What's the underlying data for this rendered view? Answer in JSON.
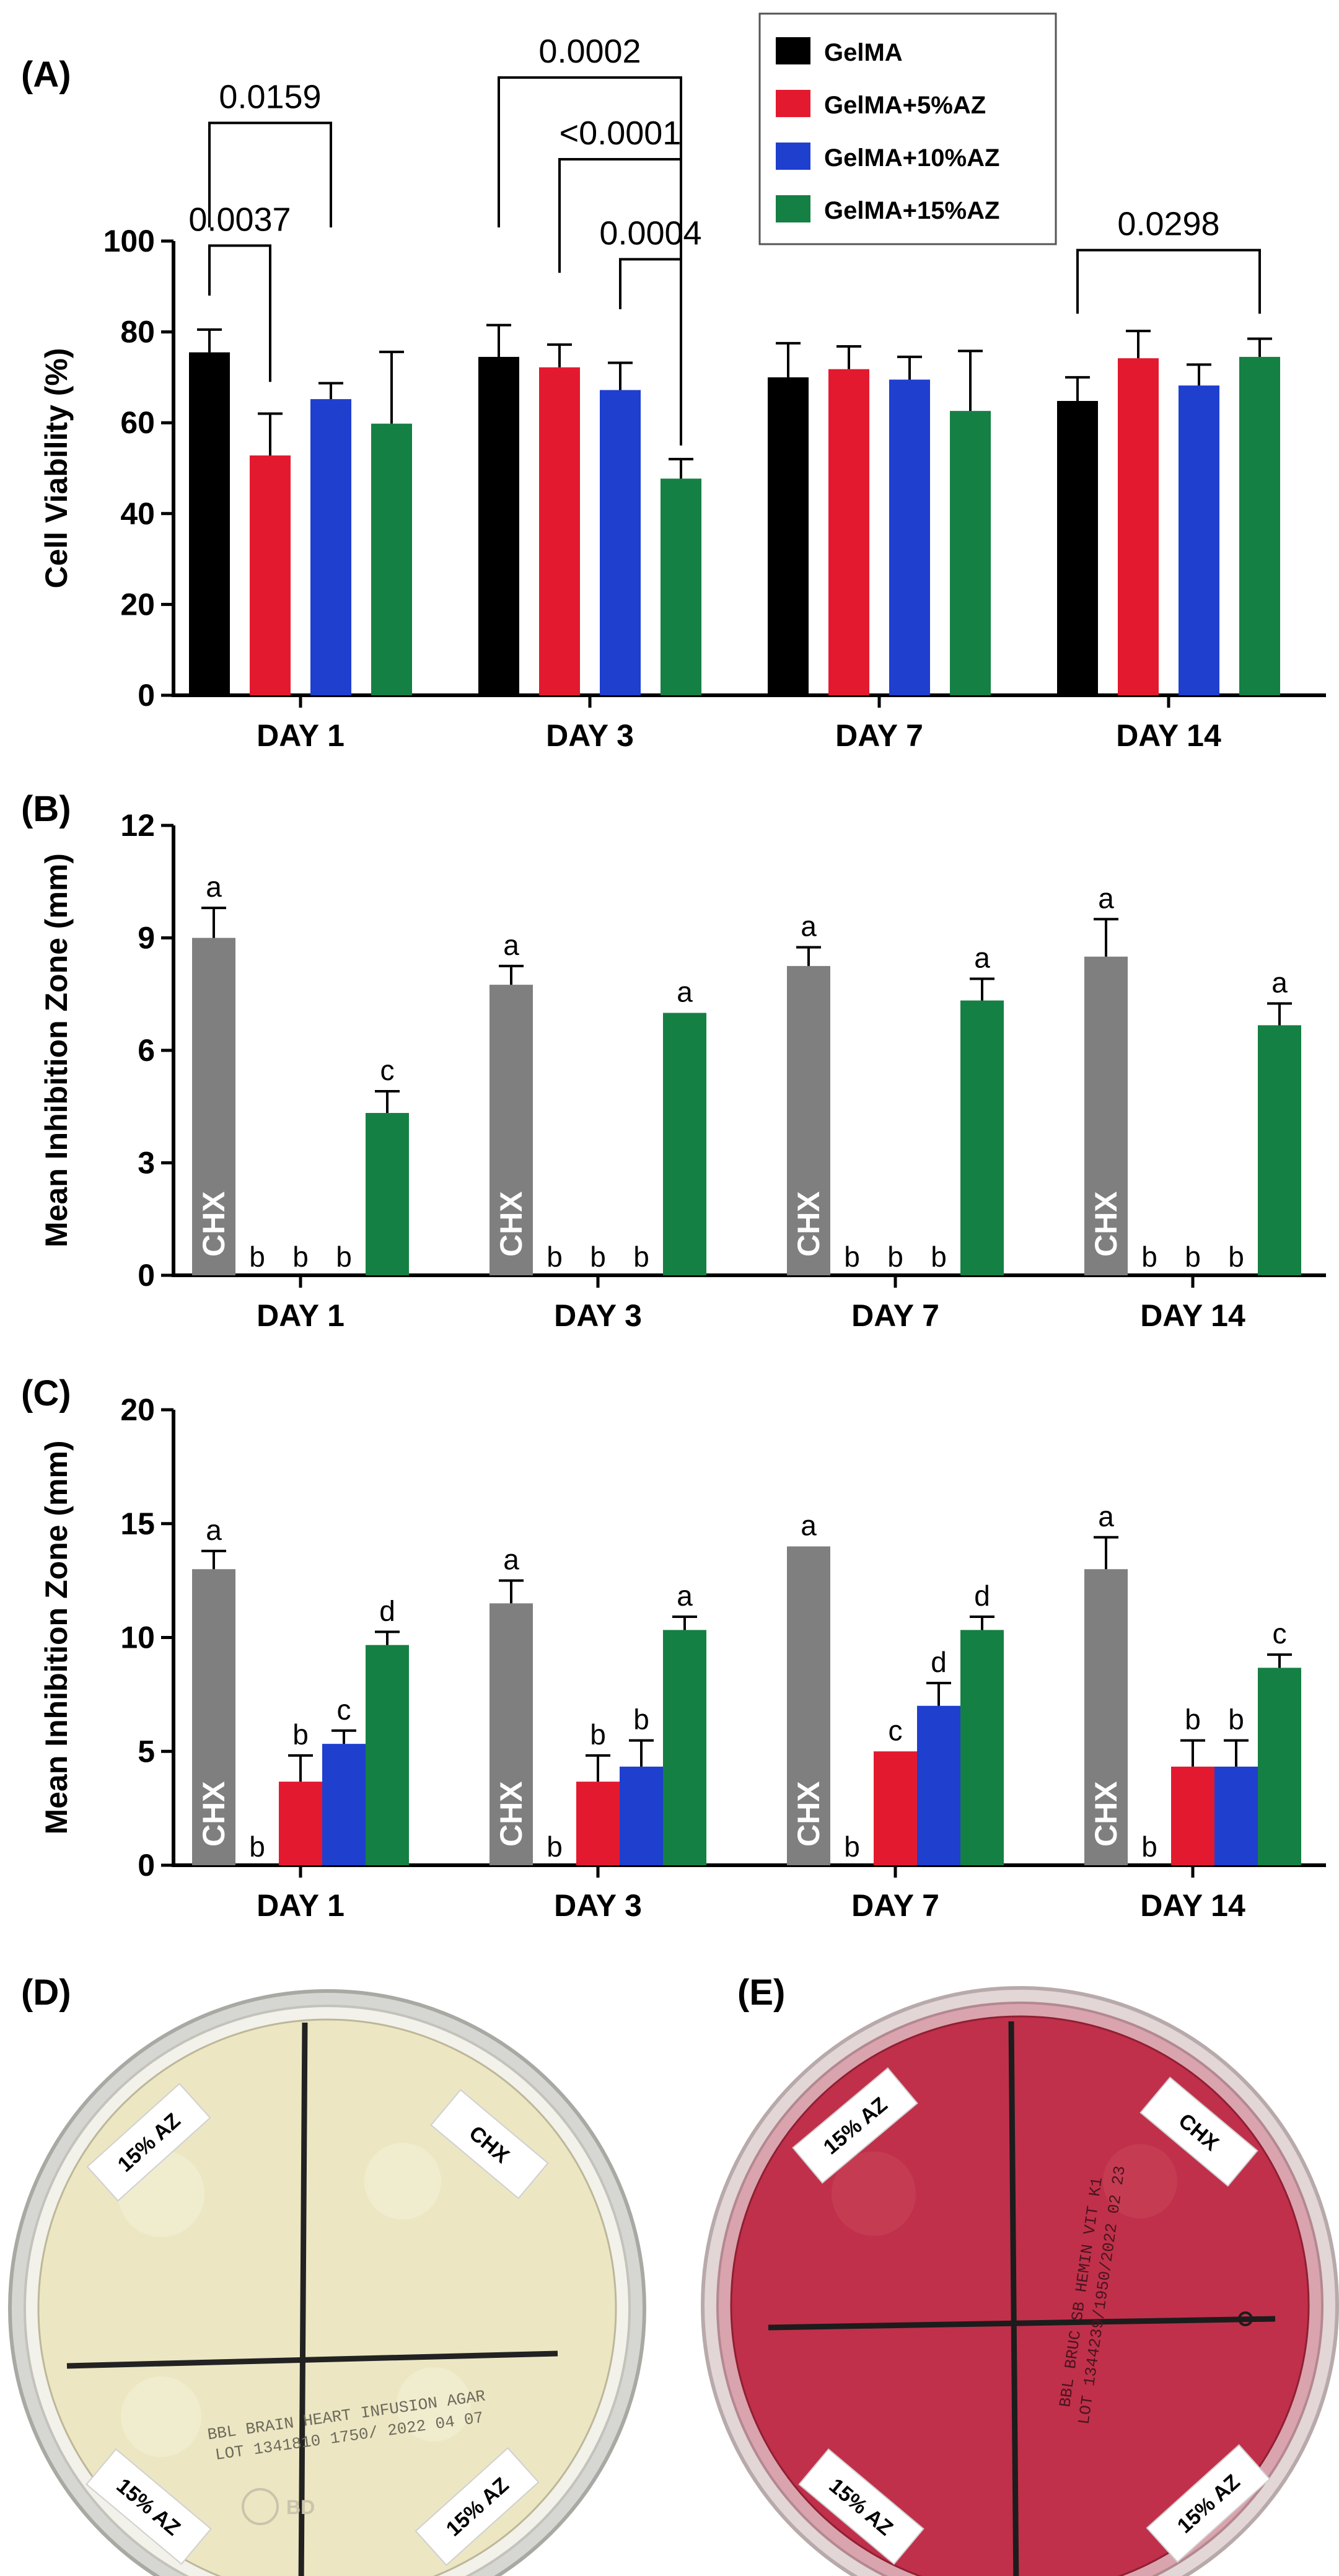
{
  "panels": {
    "A": "(A)",
    "B": "(B)",
    "C": "(C)",
    "D": "(D)",
    "E": "(E)"
  },
  "colors": {
    "GelMA": "#000000",
    "GelMA+5%AZ": "#e31a2f",
    "GelMA+10%AZ": "#1f3fcf",
    "GelMA+15%AZ": "#158043",
    "CHX": "#7f7f7f"
  },
  "legend": [
    "GelMA",
    "GelMA+5%AZ",
    "GelMA+10%AZ",
    "GelMA+15%AZ"
  ],
  "chart_data": [
    {
      "id": "A",
      "type": "bar",
      "title": "",
      "xlabel": "",
      "ylabel": "Cell Viability (%)",
      "ylim": [
        0,
        100
      ],
      "yticks": [
        0,
        20,
        40,
        60,
        80,
        100
      ],
      "categories": [
        "DAY 1",
        "DAY 3",
        "DAY 7",
        "DAY 14"
      ],
      "series": [
        {
          "name": "GelMA",
          "values": [
            75.5,
            74.5,
            70,
            64.8
          ],
          "errors": [
            5,
            7,
            7.5,
            5.2
          ]
        },
        {
          "name": "GelMA+5%AZ",
          "values": [
            52.8,
            72.2,
            71.8,
            74.2
          ],
          "errors": [
            9.2,
            5,
            5,
            6
          ]
        },
        {
          "name": "GelMA+10%AZ",
          "values": [
            65.2,
            67.2,
            69.5,
            68.2
          ],
          "errors": [
            3.5,
            6,
            5,
            4.6
          ]
        },
        {
          "name": "GelMA+15%AZ",
          "values": [
            59.8,
            47.7,
            62.6,
            74.5
          ],
          "errors": [
            15.8,
            4.3,
            13.2,
            4
          ]
        }
      ],
      "annotations": [
        {
          "text": "0.0037",
          "category": 0,
          "from_series": 0,
          "to_series": 1
        },
        {
          "text": "0.0159",
          "category": 0,
          "from_series": 0,
          "to_series": 2
        },
        {
          "text": "0.0002",
          "category": 1,
          "from_series": 0,
          "to_series": 3
        },
        {
          "text": "<0.0001",
          "category": 1,
          "from_series": 1,
          "to_series": 3
        },
        {
          "text": "0.0004",
          "category": 1,
          "from_series": 2,
          "to_series": 3
        },
        {
          "text": "0.0298",
          "category": 3,
          "from_series": 0,
          "to_series": 3
        }
      ]
    },
    {
      "id": "B",
      "type": "bar",
      "title": "",
      "xlabel": "",
      "ylabel": "Mean Inhibition Zone (mm)",
      "ylim": [
        0,
        12
      ],
      "yticks": [
        0,
        3,
        6,
        9,
        12
      ],
      "categories": [
        "DAY 1",
        "DAY 3",
        "DAY 7",
        "DAY 14"
      ],
      "bar_text": "CHX",
      "series": [
        {
          "name": "CHX",
          "values": [
            9,
            7.75,
            8.25,
            8.5
          ],
          "errors": [
            0.8,
            0.5,
            0.5,
            1
          ],
          "letters": [
            "a",
            "a",
            "a",
            "a"
          ]
        },
        {
          "name": "GelMA",
          "values": [
            0,
            0,
            0,
            0
          ],
          "errors": [
            0,
            0,
            0,
            0
          ],
          "letters": [
            "b",
            "b",
            "b",
            "b"
          ]
        },
        {
          "name": "GelMA+5%AZ",
          "values": [
            0,
            0,
            0,
            0
          ],
          "errors": [
            0,
            0,
            0,
            0
          ],
          "letters": [
            "b",
            "b",
            "b",
            "b"
          ]
        },
        {
          "name": "GelMA+10%AZ",
          "values": [
            0,
            0,
            0,
            0
          ],
          "errors": [
            0,
            0,
            0,
            0
          ],
          "letters": [
            "b",
            "b",
            "b",
            "b"
          ]
        },
        {
          "name": "GelMA+15%AZ",
          "values": [
            4.33,
            7,
            7.33,
            6.67
          ],
          "errors": [
            0.58,
            0,
            0.58,
            0.58
          ],
          "letters": [
            "c",
            "a",
            "a",
            "a"
          ]
        }
      ]
    },
    {
      "id": "C",
      "type": "bar",
      "title": "",
      "xlabel": "",
      "ylabel": "Mean Inhibition Zone (mm)",
      "ylim": [
        0,
        20
      ],
      "yticks": [
        0,
        5,
        10,
        15,
        20
      ],
      "categories": [
        "DAY 1",
        "DAY 3",
        "DAY 7",
        "DAY 14"
      ],
      "bar_text": "CHX",
      "series": [
        {
          "name": "CHX",
          "values": [
            13,
            11.5,
            14,
            13
          ],
          "errors": [
            0.8,
            1,
            0,
            1.4
          ],
          "letters": [
            "a",
            "a",
            "a",
            "a"
          ]
        },
        {
          "name": "GelMA",
          "values": [
            0,
            0,
            0,
            0
          ],
          "errors": [
            0,
            0,
            0,
            0
          ],
          "letters": [
            "b",
            "b",
            "b",
            "b"
          ]
        },
        {
          "name": "GelMA+5%AZ",
          "values": [
            3.67,
            3.67,
            5,
            4.33
          ],
          "errors": [
            1.15,
            1.15,
            0,
            1.15
          ],
          "letters": [
            "b",
            "b",
            "c",
            "b"
          ]
        },
        {
          "name": "GelMA+10%AZ",
          "values": [
            5.33,
            4.33,
            7,
            4.33
          ],
          "errors": [
            0.58,
            1.15,
            1,
            1.15
          ],
          "letters": [
            "c",
            "b",
            "d",
            "b"
          ]
        },
        {
          "name": "GelMA+15%AZ",
          "values": [
            9.67,
            10.33,
            10.33,
            8.67
          ],
          "errors": [
            0.58,
            0.58,
            0.58,
            0.58
          ],
          "letters": [
            "d",
            "a",
            "d",
            "c"
          ]
        }
      ]
    }
  ],
  "plates": {
    "D": {
      "quadrant_labels": [
        "15% AZ",
        "CHX",
        "15% AZ",
        "15% AZ"
      ],
      "print_lines": [
        "BBL BRAIN HEART INFUSION AGAR",
        "LOT 1341810 1750/ 2022 04 07"
      ],
      "agar_color": "#ece6c2",
      "logo_text": "BD"
    },
    "E": {
      "quadrant_labels": [
        "15% AZ",
        "CHX",
        "15% AZ",
        "15% AZ"
      ],
      "print_lines": [
        "BBL BRUC SB HEMIN VIT K1",
        "LOT 1344239/1950/2022 02 23"
      ],
      "agar_color": "#c0304a"
    }
  }
}
